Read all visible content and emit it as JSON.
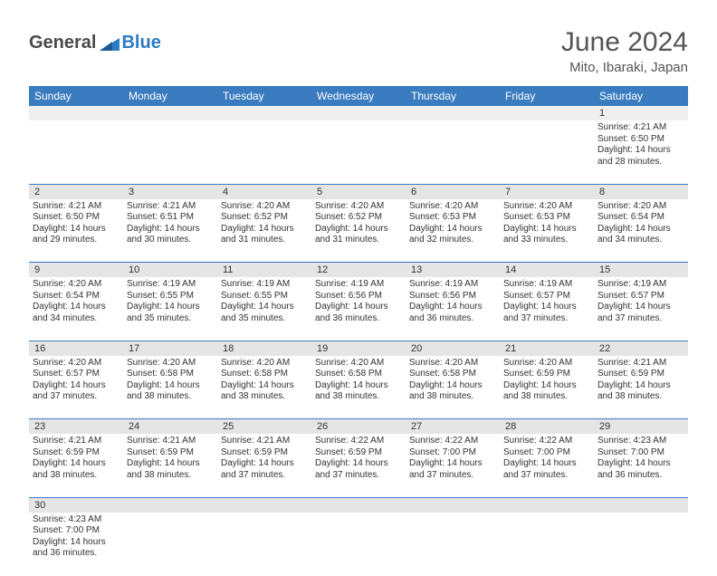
{
  "logo": {
    "text1": "General",
    "text2": "Blue"
  },
  "title": "June 2024",
  "subtitle": "Mito, Ibaraki, Japan",
  "colors": {
    "header_bg": "#3a7cbf",
    "header_text": "#ffffff",
    "daynum_bg": "#e5e5e5",
    "cell_border": "#3a7cbf",
    "logo_gray": "#4a4a4a",
    "logo_blue": "#2b7cc2"
  },
  "day_headers": [
    "Sunday",
    "Monday",
    "Tuesday",
    "Wednesday",
    "Thursday",
    "Friday",
    "Saturday"
  ],
  "weeks": [
    [
      null,
      null,
      null,
      null,
      null,
      null,
      {
        "n": "1",
        "sunrise": "4:21 AM",
        "sunset": "6:50 PM",
        "daylight": "14 hours and 28 minutes."
      }
    ],
    [
      {
        "n": "2",
        "sunrise": "4:21 AM",
        "sunset": "6:50 PM",
        "daylight": "14 hours and 29 minutes."
      },
      {
        "n": "3",
        "sunrise": "4:21 AM",
        "sunset": "6:51 PM",
        "daylight": "14 hours and 30 minutes."
      },
      {
        "n": "4",
        "sunrise": "4:20 AM",
        "sunset": "6:52 PM",
        "daylight": "14 hours and 31 minutes."
      },
      {
        "n": "5",
        "sunrise": "4:20 AM",
        "sunset": "6:52 PM",
        "daylight": "14 hours and 31 minutes."
      },
      {
        "n": "6",
        "sunrise": "4:20 AM",
        "sunset": "6:53 PM",
        "daylight": "14 hours and 32 minutes."
      },
      {
        "n": "7",
        "sunrise": "4:20 AM",
        "sunset": "6:53 PM",
        "daylight": "14 hours and 33 minutes."
      },
      {
        "n": "8",
        "sunrise": "4:20 AM",
        "sunset": "6:54 PM",
        "daylight": "14 hours and 34 minutes."
      }
    ],
    [
      {
        "n": "9",
        "sunrise": "4:20 AM",
        "sunset": "6:54 PM",
        "daylight": "14 hours and 34 minutes."
      },
      {
        "n": "10",
        "sunrise": "4:19 AM",
        "sunset": "6:55 PM",
        "daylight": "14 hours and 35 minutes."
      },
      {
        "n": "11",
        "sunrise": "4:19 AM",
        "sunset": "6:55 PM",
        "daylight": "14 hours and 35 minutes."
      },
      {
        "n": "12",
        "sunrise": "4:19 AM",
        "sunset": "6:56 PM",
        "daylight": "14 hours and 36 minutes."
      },
      {
        "n": "13",
        "sunrise": "4:19 AM",
        "sunset": "6:56 PM",
        "daylight": "14 hours and 36 minutes."
      },
      {
        "n": "14",
        "sunrise": "4:19 AM",
        "sunset": "6:57 PM",
        "daylight": "14 hours and 37 minutes."
      },
      {
        "n": "15",
        "sunrise": "4:19 AM",
        "sunset": "6:57 PM",
        "daylight": "14 hours and 37 minutes."
      }
    ],
    [
      {
        "n": "16",
        "sunrise": "4:20 AM",
        "sunset": "6:57 PM",
        "daylight": "14 hours and 37 minutes."
      },
      {
        "n": "17",
        "sunrise": "4:20 AM",
        "sunset": "6:58 PM",
        "daylight": "14 hours and 38 minutes."
      },
      {
        "n": "18",
        "sunrise": "4:20 AM",
        "sunset": "6:58 PM",
        "daylight": "14 hours and 38 minutes."
      },
      {
        "n": "19",
        "sunrise": "4:20 AM",
        "sunset": "6:58 PM",
        "daylight": "14 hours and 38 minutes."
      },
      {
        "n": "20",
        "sunrise": "4:20 AM",
        "sunset": "6:58 PM",
        "daylight": "14 hours and 38 minutes."
      },
      {
        "n": "21",
        "sunrise": "4:20 AM",
        "sunset": "6:59 PM",
        "daylight": "14 hours and 38 minutes."
      },
      {
        "n": "22",
        "sunrise": "4:21 AM",
        "sunset": "6:59 PM",
        "daylight": "14 hours and 38 minutes."
      }
    ],
    [
      {
        "n": "23",
        "sunrise": "4:21 AM",
        "sunset": "6:59 PM",
        "daylight": "14 hours and 38 minutes."
      },
      {
        "n": "24",
        "sunrise": "4:21 AM",
        "sunset": "6:59 PM",
        "daylight": "14 hours and 38 minutes."
      },
      {
        "n": "25",
        "sunrise": "4:21 AM",
        "sunset": "6:59 PM",
        "daylight": "14 hours and 37 minutes."
      },
      {
        "n": "26",
        "sunrise": "4:22 AM",
        "sunset": "6:59 PM",
        "daylight": "14 hours and 37 minutes."
      },
      {
        "n": "27",
        "sunrise": "4:22 AM",
        "sunset": "7:00 PM",
        "daylight": "14 hours and 37 minutes."
      },
      {
        "n": "28",
        "sunrise": "4:22 AM",
        "sunset": "7:00 PM",
        "daylight": "14 hours and 37 minutes."
      },
      {
        "n": "29",
        "sunrise": "4:23 AM",
        "sunset": "7:00 PM",
        "daylight": "14 hours and 36 minutes."
      }
    ],
    [
      {
        "n": "30",
        "sunrise": "4:23 AM",
        "sunset": "7:00 PM",
        "daylight": "14 hours and 36 minutes."
      },
      null,
      null,
      null,
      null,
      null,
      null
    ]
  ],
  "labels": {
    "sunrise": "Sunrise:",
    "sunset": "Sunset:",
    "daylight": "Daylight:"
  }
}
